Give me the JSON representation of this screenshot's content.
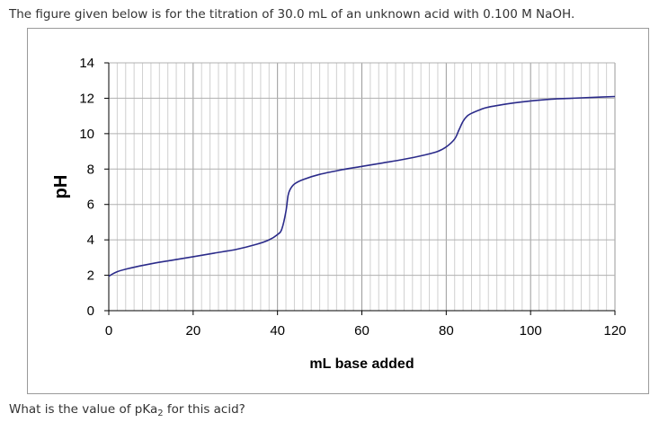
{
  "question": {
    "prompt": "The figure given below is for the titration of 30.0 mL of an unknown acid with 0.100 M NaOH.",
    "ask_prefix": "What is the value of pKa",
    "ask_subscript": "2",
    "ask_suffix": " for this acid?"
  },
  "chart_data": {
    "type": "line",
    "title": "",
    "xlabel": "mL base added",
    "ylabel": "pH",
    "xlim": [
      0,
      120
    ],
    "ylim": [
      0,
      14
    ],
    "xticks": [
      0,
      20,
      40,
      60,
      80,
      100,
      120
    ],
    "yticks": [
      0,
      2,
      4,
      6,
      8,
      10,
      12,
      14
    ],
    "grid": true,
    "line_color": "#2b2b8a",
    "series": [
      {
        "x": [
          0,
          2,
          5,
          10,
          15,
          20,
          25,
          30,
          35,
          38,
          40,
          41,
          42,
          42.5,
          43,
          44,
          46,
          50,
          55,
          60,
          65,
          70,
          75,
          78,
          80,
          82,
          83,
          84,
          85,
          86,
          88,
          90,
          95,
          100,
          105,
          110,
          115,
          120
        ],
        "y": [
          1.95,
          2.2,
          2.4,
          2.65,
          2.85,
          3.05,
          3.25,
          3.45,
          3.75,
          4.0,
          4.3,
          4.6,
          5.6,
          6.5,
          6.85,
          7.15,
          7.4,
          7.7,
          7.95,
          8.15,
          8.35,
          8.55,
          8.8,
          9.0,
          9.25,
          9.7,
          10.2,
          10.7,
          11.0,
          11.15,
          11.35,
          11.5,
          11.7,
          11.85,
          11.95,
          12.0,
          12.05,
          12.1
        ]
      }
    ]
  }
}
